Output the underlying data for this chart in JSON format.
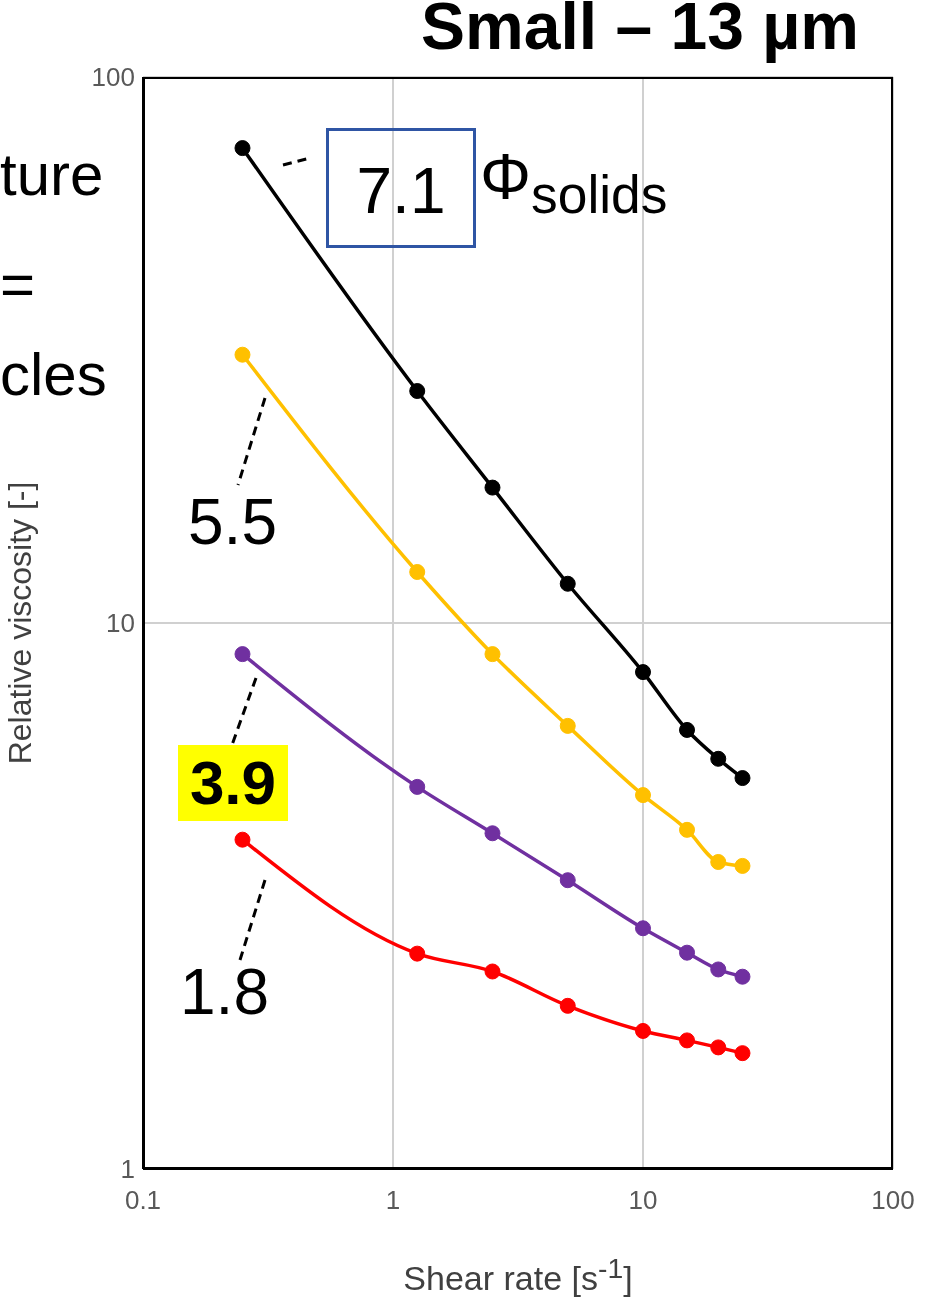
{
  "chart_data": {
    "type": "line",
    "title": "Small – 13 µm",
    "xlabel": "Shear rate [s$^{-1}$]",
    "ylabel": "Relative viscosity [-]",
    "x": [
      0.25,
      1.25,
      2.5,
      5,
      10,
      15,
      20,
      25
    ],
    "series": [
      {
        "color": "#000000",
        "values": [
          74.1,
          26.6,
          17.7,
          11.8,
          8.13,
          6.37,
          5.64,
          5.2
        ]
      },
      {
        "color": "#ffc000",
        "values": [
          31.0,
          12.4,
          8.77,
          6.48,
          4.84,
          4.18,
          3.65,
          3.59
        ]
      },
      {
        "color": "#7030a0",
        "values": [
          8.77,
          5.01,
          4.12,
          3.38,
          2.76,
          2.49,
          2.32,
          2.25
        ]
      },
      {
        "color": "#ff0000",
        "values": [
          4.01,
          2.48,
          2.3,
          1.99,
          1.79,
          1.72,
          1.67,
          1.63
        ]
      }
    ],
    "log": "xy",
    "xlim": [
      0.1,
      100
    ],
    "xticks": [
      0.1,
      1,
      10,
      100
    ],
    "ylim": [
      1,
      100
    ],
    "yticks": [
      1,
      10,
      100
    ],
    "grid": true,
    "legend": false,
    "marker": "circle",
    "line_style": "solid",
    "annotations": [
      "ture",
      "=",
      "cles",
      "7.1",
      "Φ$_{solids}$",
      "5.5",
      "3.9",
      "1.8"
    ]
  }
}
